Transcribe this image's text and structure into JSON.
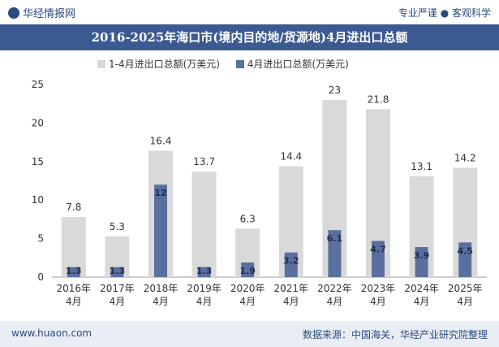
{
  "header": {
    "brand": "华经情报网",
    "slogan": "专业严谨 ● 客观科学"
  },
  "footer": {
    "website": "www.huaon.com",
    "source": "数据来源：中国海关，华经产业研究院整理"
  },
  "colors": {
    "total_series": "#d9d9d9",
    "april_series": "#5b6f9e",
    "title_bg": "#3c5a92"
  },
  "chart_data": {
    "type": "bar",
    "title": "2016-2025年海口市(境内目的地/货源地)4月进出口总额",
    "categories": [
      "2016年\n4月",
      "2017年\n4月",
      "2018年\n4月",
      "2019年\n4月",
      "2020年\n4月",
      "2021年\n4月",
      "2022年\n4月",
      "2023年\n4月",
      "2024年\n4月",
      "2025年\n4月"
    ],
    "series": [
      {
        "name": "1-4月进出口总额(万美元)",
        "values": [
          7.8,
          5.3,
          16.4,
          13.7,
          6.3,
          14.4,
          23,
          21.8,
          13.1,
          14.2
        ]
      },
      {
        "name": "4月进出口总额(万美元)",
        "values": [
          1.3,
          1.3,
          12,
          1.3,
          1.9,
          3.2,
          6.1,
          4.7,
          3.9,
          4.5
        ]
      }
    ],
    "ylim": [
      0,
      25
    ],
    "yticks": [
      0,
      5,
      10,
      15,
      20,
      25
    ],
    "legend": "top-center",
    "grid": false
  }
}
